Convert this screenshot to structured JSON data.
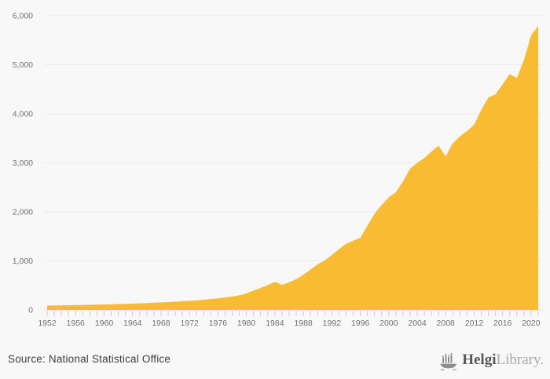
{
  "page": {
    "background": "#f8f8f8"
  },
  "chart_data": {
    "type": "area",
    "title": "",
    "xlabel": "",
    "ylabel": "",
    "x": [
      1952,
      1953,
      1954,
      1955,
      1956,
      1957,
      1958,
      1959,
      1960,
      1961,
      1962,
      1963,
      1964,
      1965,
      1966,
      1967,
      1968,
      1969,
      1970,
      1971,
      1972,
      1973,
      1974,
      1975,
      1976,
      1977,
      1978,
      1979,
      1980,
      1981,
      1982,
      1983,
      1984,
      1985,
      1986,
      1987,
      1988,
      1989,
      1990,
      1991,
      1992,
      1993,
      1994,
      1995,
      1996,
      1997,
      1998,
      1999,
      2000,
      2001,
      2002,
      2003,
      2004,
      2005,
      2006,
      2007,
      2008,
      2009,
      2010,
      2011,
      2012,
      2013,
      2014,
      2015,
      2016,
      2017,
      2018,
      2019,
      2020,
      2021
    ],
    "values": [
      90,
      92,
      94,
      96,
      99,
      102,
      105,
      108,
      112,
      116,
      120,
      125,
      130,
      135,
      141,
      147,
      153,
      160,
      168,
      177,
      186,
      196,
      208,
      222,
      237,
      254,
      274,
      298,
      340,
      395,
      450,
      505,
      575,
      510,
      565,
      625,
      720,
      820,
      930,
      1010,
      1120,
      1240,
      1350,
      1410,
      1470,
      1720,
      1960,
      2140,
      2300,
      2400,
      2620,
      2880,
      3000,
      3100,
      3230,
      3350,
      3130,
      3400,
      3540,
      3650,
      3780,
      4080,
      4330,
      4400,
      4600,
      4810,
      4730,
      5100,
      5600,
      5790
    ],
    "ylim": [
      0,
      6000
    ],
    "y_ticks": [
      0,
      1000,
      2000,
      3000,
      4000,
      5000,
      6000
    ],
    "y_tick_labels": [
      "0",
      "1,000",
      "2,000",
      "3,000",
      "4,000",
      "5,000",
      "6,000"
    ],
    "x_label_years": [
      1952,
      1956,
      1960,
      1964,
      1968,
      1972,
      1976,
      1980,
      1984,
      1988,
      1992,
      1996,
      2000,
      2004,
      2008,
      2012,
      2016,
      2020
    ],
    "grid": "horizontal",
    "legend": "none",
    "area_color": "#f9bb31"
  },
  "colors": {
    "area_fill": "#f9bb31",
    "grid_line": "#ececec",
    "zero_line": "#e3e3e3",
    "tick_mark": "#c3cbd8",
    "axis_text": "#6f6f75",
    "source_text": "#3d3d3d",
    "logo_dark": "#57575b",
    "logo_light": "#a9a9a9",
    "logo_icon": "#8d8d8d",
    "background": "#f8f8f8"
  },
  "footer": {
    "source": "Source: National Statistical Office",
    "logo_bold": "Helgi",
    "logo_light": "Library."
  }
}
